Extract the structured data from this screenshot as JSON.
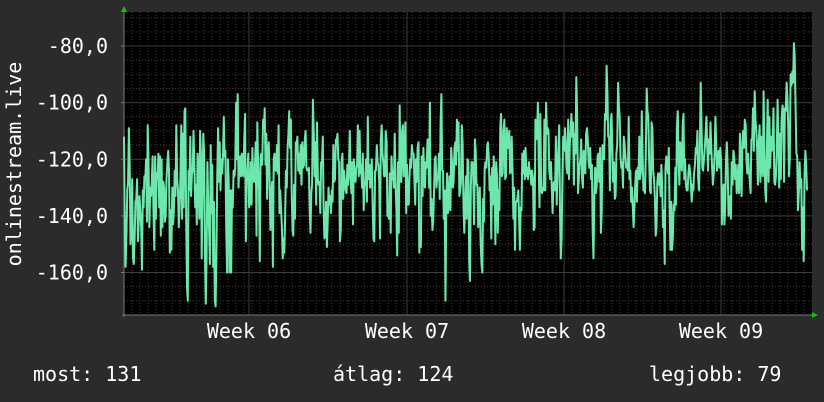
{
  "chart_data": {
    "type": "line",
    "ylabel": "onlinestream.live",
    "xlabel": "",
    "title": "",
    "x_ticks": [
      "Week 06",
      "Week 07",
      "Week 08",
      "Week 09"
    ],
    "y_ticks": [
      "-80,0",
      "-100,0",
      "-120,0",
      "-140,0",
      "-160,0"
    ],
    "y_tick_values": [
      -80,
      -100,
      -120,
      -140,
      -160
    ],
    "ylim": [
      -175,
      -68
    ],
    "grid": true,
    "series": [
      {
        "values": [
          -112,
          -145,
          -158,
          -146,
          -131,
          -128,
          -109,
          -122,
          -150,
          -144,
          -127,
          -155,
          -157,
          -148,
          -135,
          -134,
          -127,
          -149,
          -142,
          -133,
          -139,
          -144,
          -159,
          -131,
          -137,
          -126,
          -127,
          -120,
          -142,
          -108,
          -120,
          -144,
          -130,
          -133,
          -128,
          -119,
          -137,
          -152,
          -119,
          -141,
          -125,
          -127,
          -118,
          -137,
          -119,
          -147,
          -120,
          -144,
          -128,
          -130,
          -142,
          -140,
          -127,
          -121,
          -117,
          -124,
          -153,
          -138,
          -152,
          -130,
          -143,
          -138,
          -124,
          -133,
          -108,
          -127,
          -131,
          -144,
          -137,
          -127,
          -108,
          -141,
          -111,
          -137,
          -103,
          -102,
          -142,
          -165,
          -170,
          -124,
          -131,
          -112,
          -133,
          -125,
          -124,
          -110,
          -121,
          -137,
          -129,
          -143,
          -118,
          -126,
          -141,
          -110,
          -118,
          -155,
          -132,
          -111,
          -119,
          -154,
          -171,
          -155,
          -121,
          -137,
          -145,
          -157,
          -115,
          -139,
          -122,
          -158,
          -135,
          -170,
          -172,
          -155,
          -127,
          -109,
          -128,
          -114,
          -131,
          -120,
          -125,
          -119,
          -105,
          -119,
          -117,
          -144,
          -160,
          -120,
          -128,
          -160,
          -131,
          -160,
          -131,
          -137,
          -124,
          -126,
          -123,
          -100,
          -120,
          -97,
          -130,
          -122,
          -119,
          -126,
          -118,
          -125,
          -126,
          -113,
          -104,
          -149,
          -127,
          -124,
          -118,
          -137,
          -135,
          -121,
          -136,
          -116,
          -127,
          -128,
          -123,
          -114,
          -147,
          -107,
          -121,
          -131,
          -156,
          -119,
          -118,
          -122,
          -106,
          -109,
          -102,
          -122,
          -111,
          -134,
          -117,
          -114,
          -127,
          -145,
          -133,
          -128,
          -158,
          -120,
          -118,
          -124,
          -124,
          -115,
          -125,
          -108,
          -139,
          -131,
          -137,
          -144,
          -155,
          -148,
          -153,
          -141,
          -124,
          -130,
          -116,
          -111,
          -103,
          -116,
          -106,
          -132,
          -145,
          -147,
          -129,
          -141,
          -114,
          -115,
          -112,
          -124,
          -118,
          -125,
          -115,
          -129,
          -114,
          -123,
          -122,
          -113,
          -110,
          -123,
          -124,
          -124,
          -123,
          -138,
          -146,
          -132,
          -129,
          -99,
          -111,
          -126,
          -114,
          -136,
          -107,
          -127,
          -129,
          -128,
          -139,
          -121,
          -122,
          -112,
          -137,
          -148,
          -147,
          -135,
          -151,
          -142,
          -130,
          -136,
          -133,
          -139,
          -131,
          -135,
          -115,
          -128,
          -127,
          -113,
          -113,
          -111,
          -120,
          -121,
          -149,
          -145,
          -121,
          -118,
          -134,
          -124,
          -128,
          -131,
          -132,
          -122,
          -129,
          -124,
          -110,
          -127,
          -132,
          -121,
          -143,
          -120,
          -126,
          -128,
          -123,
          -122,
          -108,
          -126,
          -110,
          -125,
          -122,
          -130,
          -118,
          -138,
          -128,
          -129,
          -120,
          -135,
          -105,
          -127,
          -122,
          -130,
          -125,
          -120,
          -137,
          -148,
          -149,
          -124,
          -124,
          -115,
          -121,
          -122,
          -128,
          -148,
          -113,
          -108,
          -118,
          -121,
          -126,
          -126,
          -110,
          -114,
          -140,
          -140,
          -141,
          -125,
          -146,
          -119,
          -127,
          -124,
          -130,
          -111,
          -130,
          -138,
          -154,
          -121,
          -146,
          -101,
          -128,
          -128,
          -110,
          -108,
          -126,
          -118,
          -107,
          -139,
          -122,
          -136,
          -136,
          -126,
          -120,
          -123,
          -115,
          -118,
          -118,
          -127,
          -136,
          -120,
          -128,
          -116,
          -114,
          -153,
          -145,
          -151,
          -119,
          -133,
          -116,
          -126,
          -130,
          -121,
          -123,
          -113,
          -117,
          -130,
          -100,
          -140,
          -134,
          -145,
          -142,
          -132,
          -120,
          -119,
          -130,
          -126,
          -127,
          -118,
          -134,
          -107,
          -97,
          -124,
          -124,
          -141,
          -131,
          -170,
          -135,
          -125,
          -139,
          -136,
          -126,
          -138,
          -116,
          -121,
          -130,
          -128,
          -116,
          -114,
          -122,
          -106,
          -117,
          -107,
          -133,
          -131,
          -128,
          -108,
          -114,
          -137,
          -146,
          -136,
          -126,
          -141,
          -120,
          -121,
          -156,
          -163,
          -130,
          -121,
          -121,
          -126,
          -143,
          -113,
          -117,
          -129,
          -129,
          -144,
          -137,
          -130,
          -149,
          -157,
          -160,
          -134,
          -142,
          -123,
          -121,
          -123,
          -115,
          -114,
          -120,
          -131,
          -126,
          -148,
          -123,
          -136,
          -119,
          -126,
          -150,
          -121,
          -126,
          -146,
          -131,
          -138,
          -108,
          -104,
          -126,
          -125,
          -110,
          -106,
          -127,
          -126,
          -109,
          -116,
          -116,
          -110,
          -125,
          -124,
          -112,
          -123,
          -141,
          -130,
          -152,
          -135,
          -135,
          -134,
          -131,
          -141,
          -152,
          -137,
          -138,
          -118,
          -125,
          -117,
          -127,
          -116,
          -126,
          -123,
          -127,
          -121,
          -125,
          -124,
          -129,
          -124,
          -127,
          -145,
          -144,
          -106,
          -113,
          -110,
          -100,
          -121,
          -137,
          -104,
          -131,
          -132,
          -130,
          -131,
          -106,
          -131,
          -100,
          -111,
          -109,
          -110,
          -124,
          -127,
          -121,
          -130,
          -139,
          -129,
          -128,
          -131,
          -112,
          -136,
          -125,
          -117,
          -108,
          -138,
          -155,
          -148,
          -126,
          -112,
          -117,
          -109,
          -114,
          -123,
          -125,
          -106,
          -127,
          -115,
          -110,
          -104,
          -112,
          -107,
          -129,
          -111,
          -118,
          -91,
          -105,
          -132,
          -127,
          -122,
          -120,
          -113,
          -127,
          -130,
          -117,
          -121,
          -125,
          -111,
          -109,
          -113,
          -121,
          -123,
          -116,
          -127,
          -122,
          -146,
          -155,
          -134,
          -123,
          -132,
          -129,
          -119,
          -118,
          -128,
          -116,
          -146,
          -139,
          -115,
          -118,
          -120,
          -104,
          -106,
          -87,
          -96,
          -112,
          -112,
          -131,
          -107,
          -104,
          -115,
          -128,
          -121,
          -134,
          -133,
          -118,
          -115,
          -93,
          -101,
          -105,
          -119,
          -123,
          -121,
          -130,
          -112,
          -115,
          -119,
          -123,
          -122,
          -124,
          -105,
          -127,
          -124,
          -135,
          -130,
          -137,
          -144,
          -137,
          -129,
          -124,
          -135,
          -123,
          -127,
          -112,
          -127,
          -124,
          -103,
          -119,
          -131,
          -131,
          -132,
          -116,
          -95,
          -103,
          -105,
          -120,
          -131,
          -132,
          -107,
          -109,
          -124,
          -127,
          -134,
          -147,
          -144,
          -128,
          -125,
          -129,
          -125,
          -133,
          -122,
          -130,
          -144,
          -138,
          -157,
          -123,
          -119,
          -122,
          -125,
          -116,
          -137,
          -152,
          -135,
          -152,
          -147,
          -136,
          -138,
          -123,
          -136,
          -109,
          -103,
          -121,
          -129,
          -114,
          -117,
          -124,
          -108,
          -104,
          -127,
          -120,
          -129,
          -131,
          -131,
          -125,
          -122,
          -124,
          -128,
          -135,
          -129,
          -131,
          -125,
          -122,
          -116,
          -118,
          -110,
          -127,
          -131,
          -117,
          -93,
          -107,
          -123,
          -124,
          -120,
          -116,
          -111,
          -105,
          -115,
          -124,
          -113,
          -118,
          -107,
          -116,
          -123,
          -129,
          -125,
          -118,
          -105,
          -114,
          -124,
          -119,
          -117,
          -123,
          -116,
          -120,
          -143,
          -132,
          -129,
          -143,
          -137,
          -120,
          -114,
          -123,
          -140,
          -137,
          -133,
          -141,
          -121,
          -129,
          -117,
          -119,
          -127,
          -122,
          -132,
          -128,
          -122,
          -132,
          -111,
          -123,
          -133,
          -114,
          -110,
          -116,
          -106,
          -108,
          -121,
          -125,
          -118,
          -124,
          -127,
          -132,
          -113,
          -113,
          -102,
          -117,
          -96,
          -106,
          -110,
          -116,
          -129,
          -115,
          -108,
          -128,
          -112,
          -121,
          -126,
          -96,
          -119,
          -131,
          -135,
          -115,
          -99,
          -128,
          -105,
          -123,
          -112,
          -117,
          -116,
          -102,
          -128,
          -129,
          -126,
          -118,
          -99,
          -113,
          -130,
          -111,
          -127,
          -106,
          -101,
          -103,
          -128,
          -102,
          -103,
          -93,
          -98,
          -108,
          -126,
          -120,
          -90,
          -94,
          -89,
          -93,
          -79,
          -84,
          -100,
          -118,
          -119,
          -138,
          -132,
          -121,
          -130,
          -127,
          -152,
          -137,
          -156,
          -126,
          -117,
          -122,
          -131
        ]
      }
    ]
  },
  "legend": {
    "current": "most: 131",
    "average": "átlag: 124",
    "best": "legjobb: 79"
  },
  "colors": {
    "background": "#2b2b2b",
    "plot_background": "#000000",
    "line": "#6ee7ad",
    "minor_grid": "#4a3a3a",
    "major_grid": "#3c3c3c",
    "axis": "#7a7a7a",
    "arrow": "#00cc00"
  }
}
